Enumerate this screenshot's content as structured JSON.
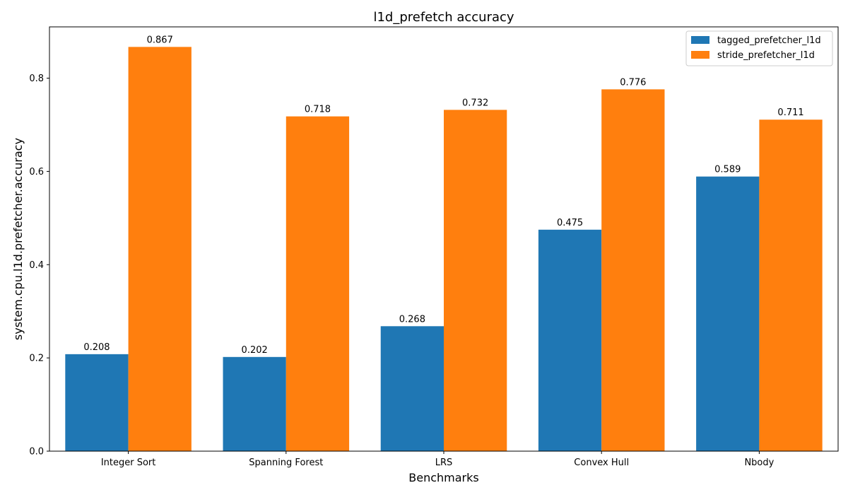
{
  "chart_data": {
    "type": "bar",
    "title": "l1d_prefetch accuracy",
    "xlabel": "Benchmarks",
    "ylabel": "system.cpu.l1d.prefetcher.accuracy",
    "categories": [
      "Integer Sort",
      "Spanning Forest",
      "LRS",
      "Convex Hull",
      "Nbody"
    ],
    "series": [
      {
        "name": "tagged_prefetcher_l1d",
        "color": "#1f77b4",
        "values": [
          0.208,
          0.202,
          0.268,
          0.475,
          0.589
        ]
      },
      {
        "name": "stride_prefetcher_l1d",
        "color": "#ff7f0e",
        "values": [
          0.867,
          0.718,
          0.732,
          0.776,
          0.711
        ]
      }
    ],
    "yticks": [
      "0.0",
      "0.2",
      "0.4",
      "0.6",
      "0.8"
    ],
    "ylim": [
      0,
      0.91
    ],
    "grid": false,
    "legend_position": "top-right"
  }
}
